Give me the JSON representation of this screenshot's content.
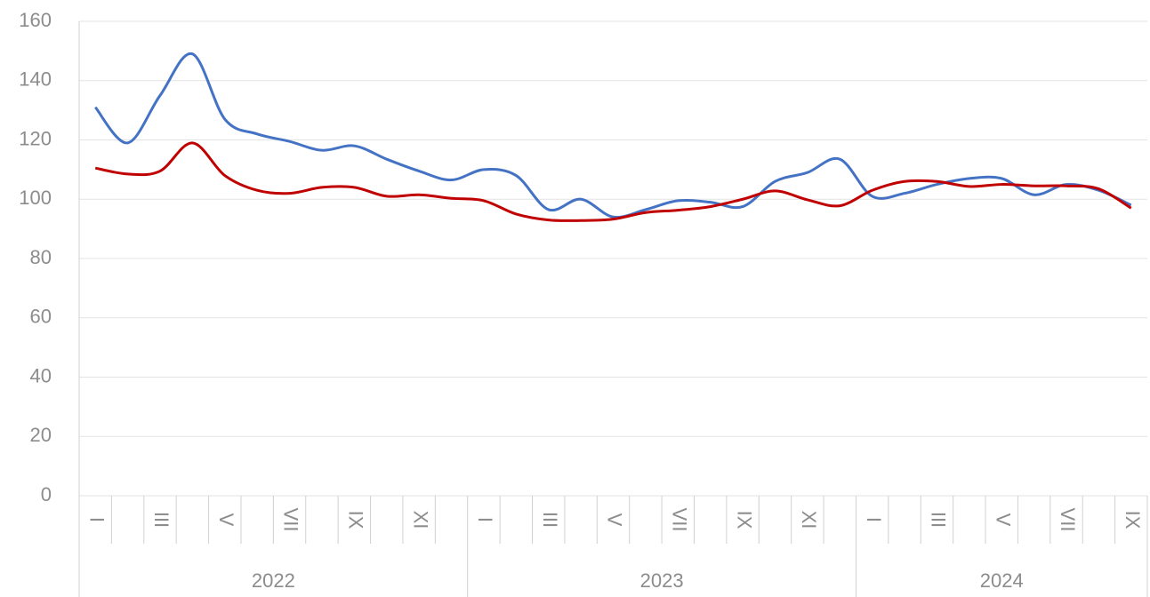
{
  "chart_data": {
    "type": "line",
    "categories": [
      "I",
      null,
      "III",
      null,
      "V",
      null,
      "VII",
      null,
      "IX",
      null,
      "XI",
      null,
      "I",
      null,
      "III",
      null,
      "V",
      null,
      "VII",
      null,
      "IX",
      null,
      "XI",
      null,
      "I",
      null,
      "III",
      null,
      "V",
      null,
      "VII",
      null,
      "IX"
    ],
    "x_groups": [
      "2022",
      "2023",
      "2024"
    ],
    "series": [
      {
        "color": "#4472c4",
        "values": [
          131,
          119,
          135,
          149,
          127,
          122,
          119.5,
          116.5,
          118,
          113.5,
          109.5,
          106.5,
          110,
          108,
          96.5,
          100,
          94,
          96.5,
          99.5,
          99,
          97.5,
          106,
          109,
          113.5,
          101,
          102,
          105,
          107,
          107,
          101.5,
          105,
          103,
          98
        ]
      },
      {
        "color": "#c00000",
        "values": [
          110.5,
          108.5,
          109.5,
          119,
          108,
          103,
          102,
          104,
          104,
          101,
          101.5,
          100.3,
          99.5,
          95,
          93,
          92.8,
          93.3,
          95.5,
          96.3,
          97.5,
          100,
          102.8,
          99.8,
          97.8,
          103,
          106,
          106,
          104.3,
          105,
          104.5,
          104.5,
          103.5,
          97
        ]
      }
    ],
    "ylim": [
      0,
      160
    ],
    "yticks": [
      0,
      20,
      40,
      60,
      80,
      100,
      120,
      140,
      160
    ],
    "grid": true
  }
}
